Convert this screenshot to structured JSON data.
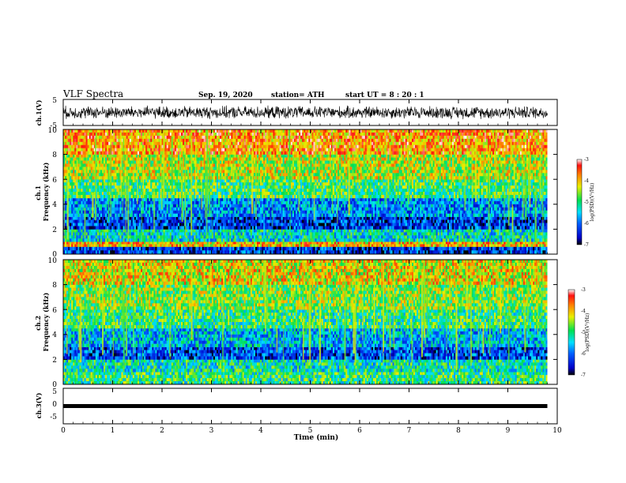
{
  "header": {
    "title": "VLF Spectra",
    "date": "Sep. 19, 2020",
    "station": "station= ATH",
    "start": "start  UT =   8 : 20 : 1"
  },
  "chart_data": [
    {
      "type": "line",
      "name": "ch.1 waveform",
      "ylabel": "ch.1(V)",
      "ylim": [
        -5,
        5
      ],
      "yticks": [
        "5",
        "-5"
      ],
      "xlim": [
        0,
        10
      ],
      "description_values": {
        "typical_amplitude_V": 2.5,
        "data_end_min": 9.8
      }
    },
    {
      "type": "heatmap",
      "name": "ch.1 spectrogram",
      "ylabel": "ch.1\nFrequency (kHz)",
      "ylim": [
        0,
        10
      ],
      "yticks": [
        "0",
        "2",
        "4",
        "6",
        "8",
        "10"
      ],
      "xlim": [
        0,
        10
      ],
      "data_end_min": 9.8,
      "colorbar": {
        "label": "log(PSD)(V²/Hz)",
        "range": [
          -7,
          -3
        ],
        "ticks": [
          "-3",
          "-4",
          "-5",
          "-6",
          "-7"
        ]
      },
      "band_levels": [
        {
          "f": [
            0.0,
            0.6
          ],
          "level": -6.3
        },
        {
          "f": [
            0.6,
            1.0
          ],
          "level": -4.0
        },
        {
          "f": [
            1.0,
            2.0
          ],
          "level": -5.3
        },
        {
          "f": [
            2.0,
            3.0
          ],
          "level": -6.3
        },
        {
          "f": [
            3.0,
            4.5
          ],
          "level": -5.8
        },
        {
          "f": [
            4.5,
            6.0
          ],
          "level": -4.9
        },
        {
          "f": [
            6.0,
            8.0
          ],
          "level": -4.4
        },
        {
          "f": [
            8.0,
            10.0
          ],
          "level": -3.8
        }
      ]
    },
    {
      "type": "heatmap",
      "name": "ch.2 spectrogram",
      "ylabel": "ch.2\nFrequency (kHz)",
      "ylim": [
        0,
        10
      ],
      "yticks": [
        "0",
        "2",
        "4",
        "6",
        "8",
        "10"
      ],
      "xlim": [
        0,
        10
      ],
      "data_end_min": 9.8,
      "colorbar": {
        "label": "log(PSD)(V²/Hz)",
        "range": [
          -7,
          -3
        ],
        "ticks": [
          "-3",
          "-4",
          "-5",
          "-6",
          "-7"
        ]
      },
      "band_levels": [
        {
          "f": [
            0.0,
            1.0
          ],
          "level": -5.0
        },
        {
          "f": [
            1.0,
            2.0
          ],
          "level": -5.2
        },
        {
          "f": [
            2.0,
            3.0
          ],
          "level": -6.2
        },
        {
          "f": [
            3.0,
            4.5
          ],
          "level": -5.6
        },
        {
          "f": [
            4.5,
            6.0
          ],
          "level": -5.0
        },
        {
          "f": [
            6.0,
            8.0
          ],
          "level": -4.6
        },
        {
          "f": [
            8.0,
            10.0
          ],
          "level": -4.2
        }
      ]
    },
    {
      "type": "line",
      "name": "ch.3 waveform",
      "ylabel": "ch.3(V)",
      "ylim": [
        -5,
        5
      ],
      "yticks": [
        "5",
        "0",
        "-5"
      ],
      "xlim": [
        0,
        10
      ],
      "value_V": 0,
      "data_end_min": 9.8,
      "xlabel": "Time (min)",
      "xticks": [
        "0",
        "1",
        "2",
        "3",
        "4",
        "5",
        "6",
        "7",
        "8",
        "9",
        "10"
      ]
    }
  ]
}
